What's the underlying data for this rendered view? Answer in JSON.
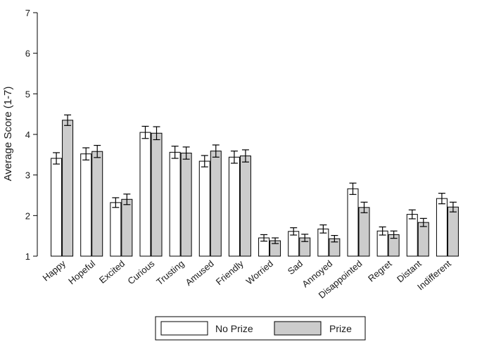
{
  "chart_data": {
    "type": "bar",
    "ylabel": "Average Score (1-7)",
    "xlabel": "",
    "ylim": [
      1,
      7
    ],
    "yticks": [
      1,
      2,
      3,
      4,
      5,
      6,
      7
    ],
    "grid": false,
    "legend_position": "bottom",
    "error_bars": true,
    "categories": [
      "Happy",
      "Hopeful",
      "Excited",
      "Curious",
      "Trusting",
      "Amused",
      "Friendly",
      "Worried",
      "Sad",
      "Annoyed",
      "Disappointed",
      "Regret",
      "Distant",
      "Indifferent"
    ],
    "series": [
      {
        "name": "No Prize",
        "color": "#ffffff",
        "values": [
          3.41,
          3.52,
          2.32,
          4.05,
          3.56,
          3.34,
          3.44,
          1.45,
          1.61,
          1.67,
          2.66,
          1.62,
          2.03,
          2.42
        ],
        "error": [
          0.14,
          0.15,
          0.12,
          0.15,
          0.15,
          0.14,
          0.15,
          0.08,
          0.09,
          0.1,
          0.14,
          0.1,
          0.11,
          0.13
        ]
      },
      {
        "name": "Prize",
        "color": "#cccccc",
        "values": [
          4.35,
          3.58,
          2.4,
          4.03,
          3.54,
          3.59,
          3.47,
          1.38,
          1.45,
          1.43,
          2.2,
          1.53,
          1.83,
          2.21
        ],
        "error": [
          0.13,
          0.15,
          0.13,
          0.16,
          0.15,
          0.15,
          0.15,
          0.07,
          0.09,
          0.08,
          0.13,
          0.09,
          0.1,
          0.12
        ]
      }
    ]
  }
}
